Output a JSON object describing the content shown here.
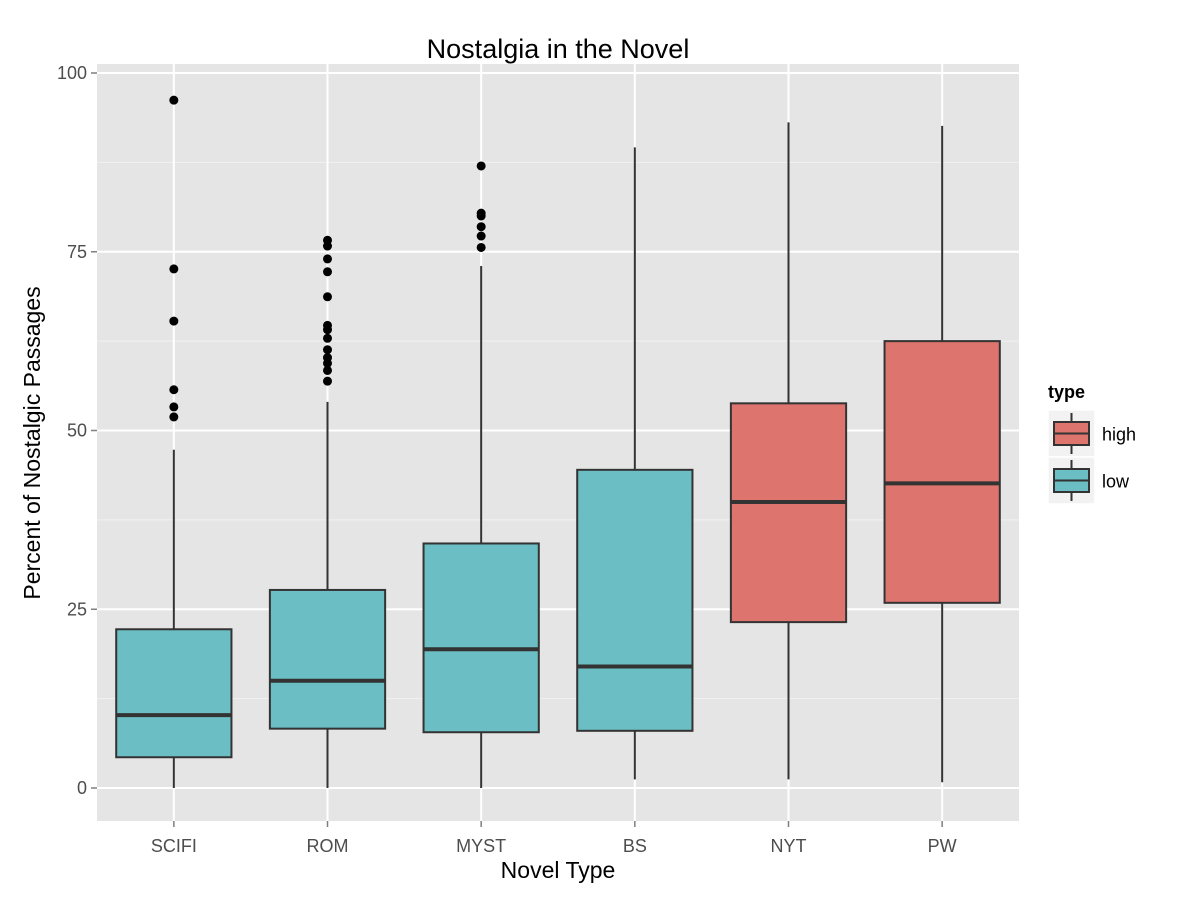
{
  "chart_data": {
    "type": "box",
    "title": "Nostalgia in the Novel",
    "xlabel": "Novel Type",
    "ylabel": "Percent of Nostalgic Passages",
    "ylim": [
      -4.5,
      102
    ],
    "yticks": [
      0,
      25,
      50,
      75,
      100
    ],
    "grid": true,
    "legend": {
      "title": "type",
      "position": "right",
      "entries": [
        {
          "label": "high",
          "color": "#dd746d"
        },
        {
          "label": "low",
          "color": "#6bbec3"
        }
      ]
    },
    "categories": [
      "SCIFI",
      "ROM",
      "MYST",
      "BS",
      "NYT",
      "PW"
    ],
    "boxes": [
      {
        "category": "SCIFI",
        "type": "low",
        "min": 0,
        "q1": 4.3,
        "median": 10.2,
        "q3": 22.2,
        "max": 47.3,
        "outliers": [
          51.9,
          53.3,
          55.7,
          65.3,
          72.6,
          96.2
        ]
      },
      {
        "category": "ROM",
        "type": "low",
        "min": 0,
        "q1": 8.3,
        "median": 15.0,
        "q3": 27.7,
        "max": 54.0,
        "outliers": [
          56.9,
          58.4,
          59.4,
          60.2,
          61.3,
          62.9,
          64.1,
          64.7,
          68.7,
          72.2,
          74.0,
          75.8,
          76.6
        ]
      },
      {
        "category": "MYST",
        "type": "low",
        "min": 0,
        "q1": 7.8,
        "median": 19.4,
        "q3": 34.2,
        "max": 73.0,
        "outliers": [
          75.6,
          77.2,
          78.5,
          80.0,
          80.4,
          87.0
        ]
      },
      {
        "category": "BS",
        "type": "low",
        "min": 1.2,
        "q1": 8.0,
        "median": 17.0,
        "q3": 44.5,
        "max": 89.6,
        "outliers": []
      },
      {
        "category": "NYT",
        "type": "high",
        "min": 1.2,
        "q1": 23.2,
        "median": 40.0,
        "q3": 53.8,
        "max": 93.1,
        "outliers": []
      },
      {
        "category": "PW",
        "type": "high",
        "min": 0.8,
        "q1": 25.9,
        "median": 42.6,
        "q3": 62.5,
        "max": 92.6,
        "outliers": []
      }
    ]
  }
}
